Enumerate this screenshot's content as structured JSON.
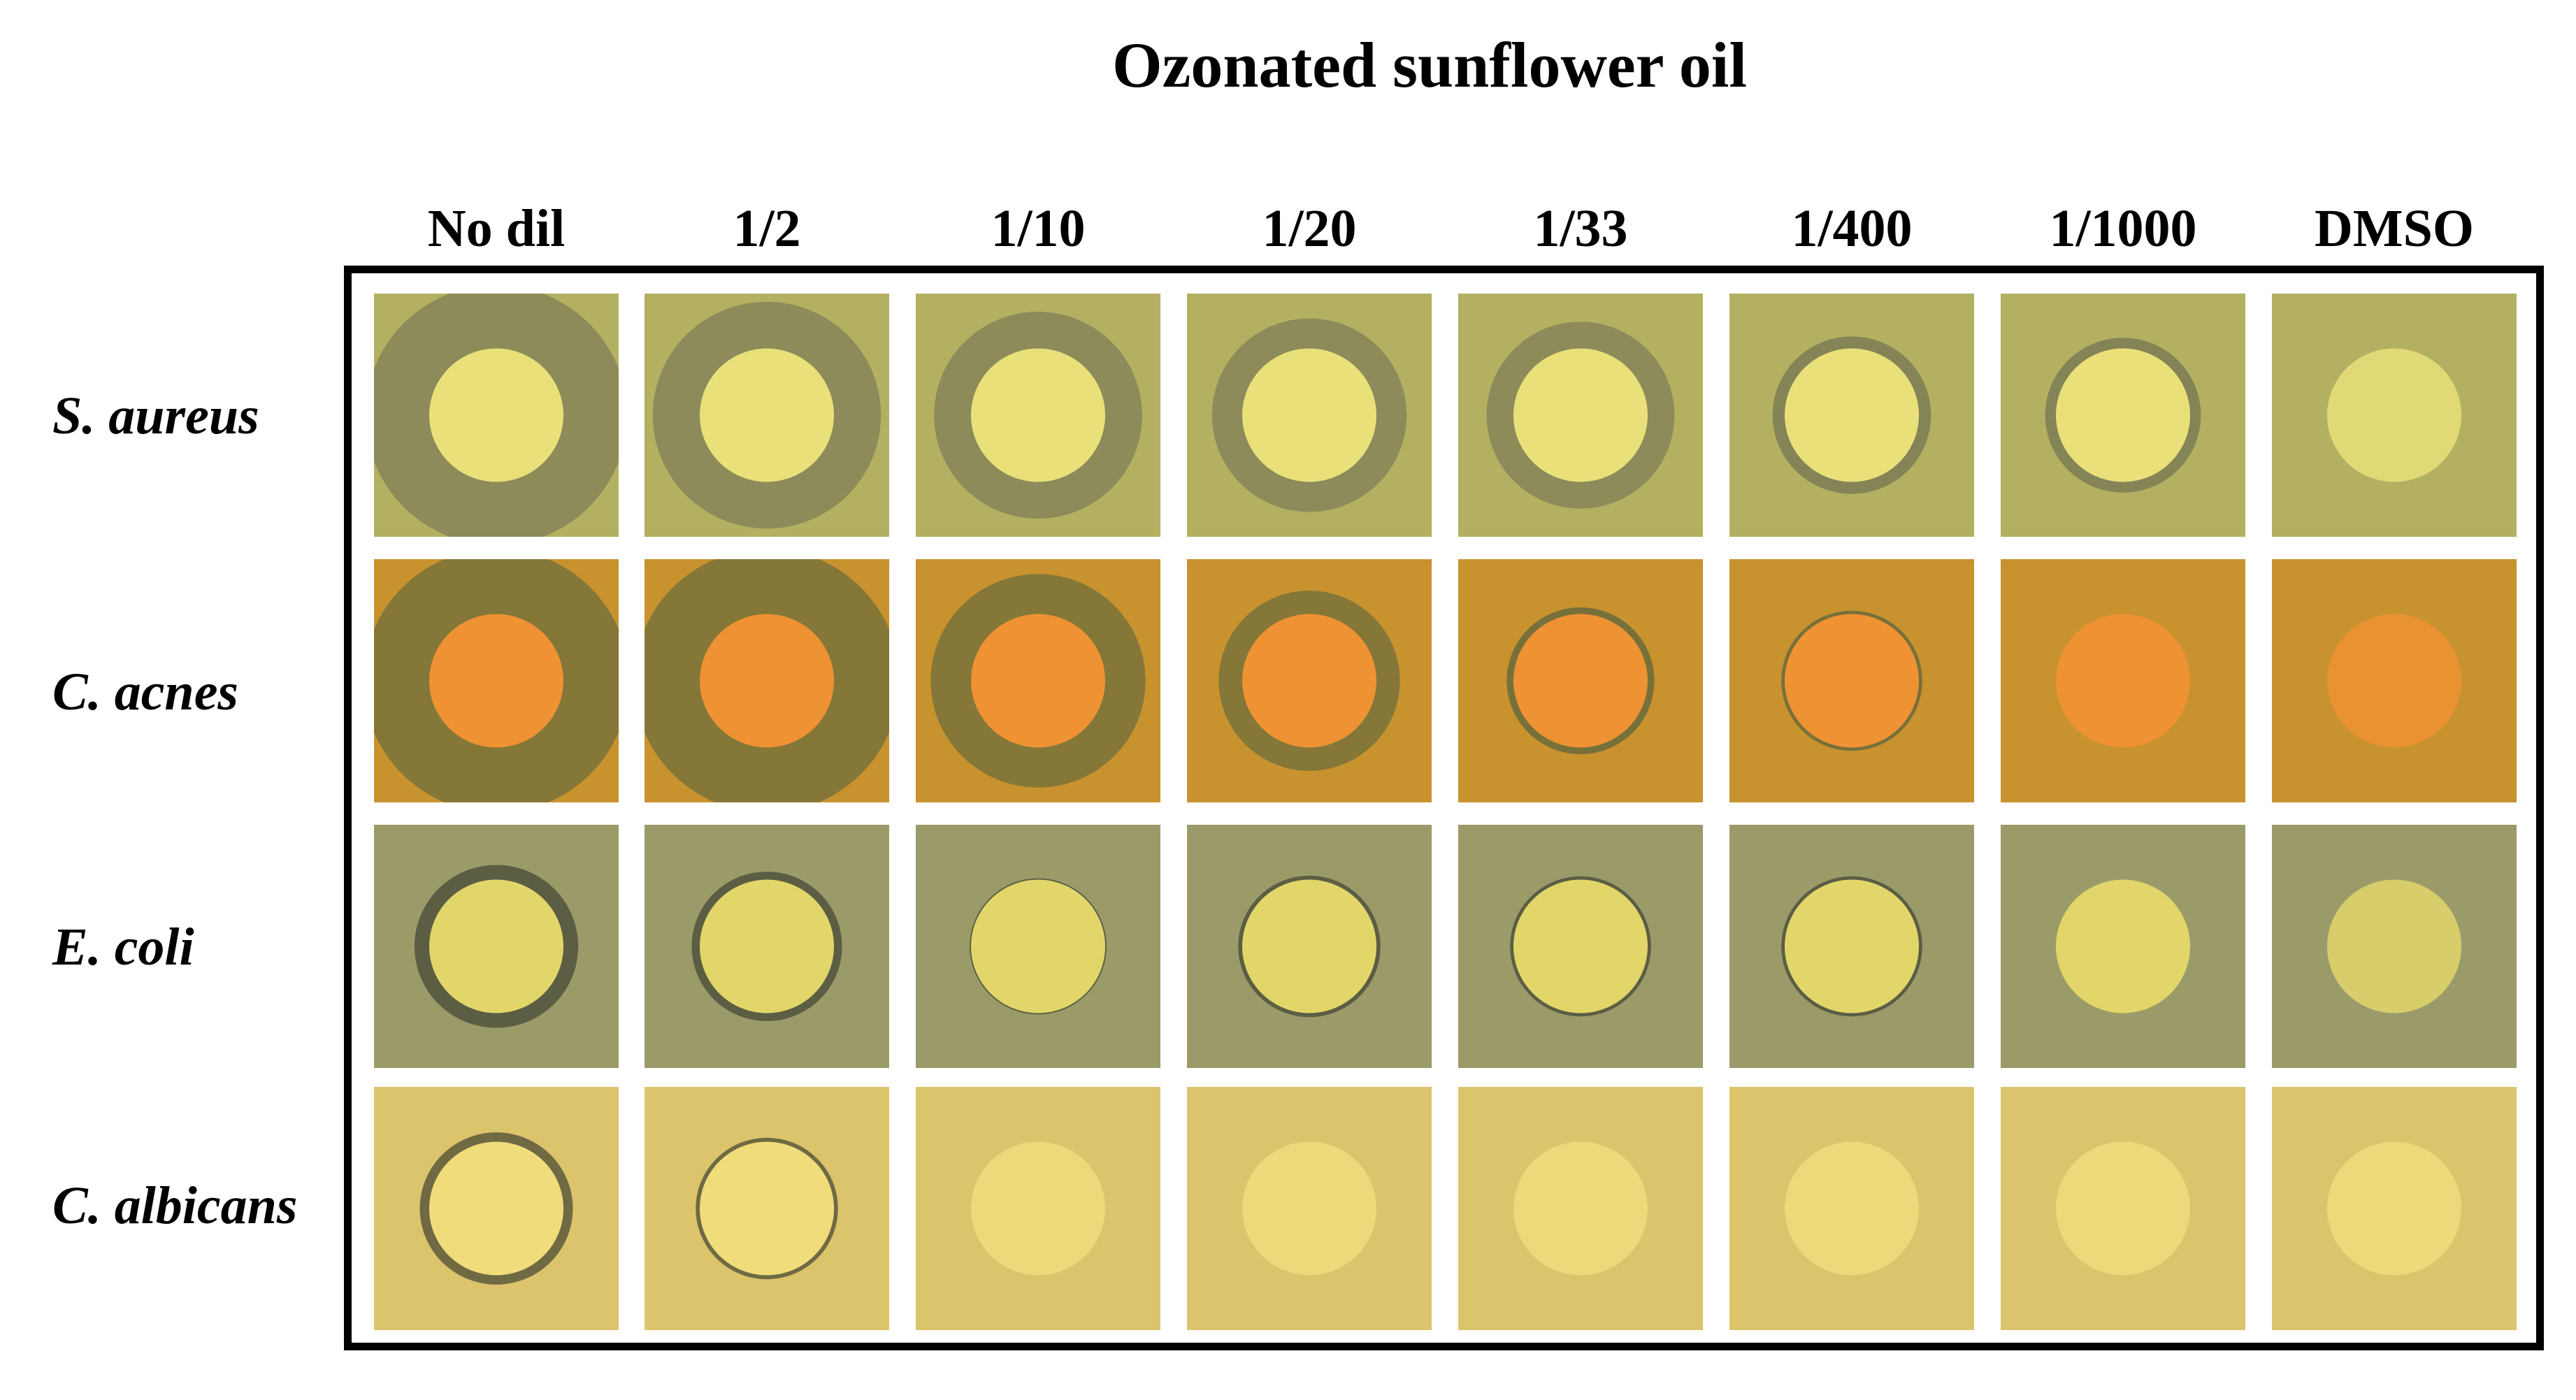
{
  "figure": {
    "title": "Ozonated sunflower oil",
    "columns": [
      "No dil",
      "1/2",
      "1/10",
      "1/20",
      "1/33",
      "1/400",
      "1/1000",
      "DMSO"
    ],
    "rows": [
      {
        "label": "S. aureus",
        "background": "#b3b061",
        "disk": "#e9e07a",
        "zone": "#7f7f57",
        "zones": [
          1.95,
          1.7,
          1.55,
          1.45,
          1.4,
          1.18,
          1.16,
          0
        ]
      },
      {
        "label": "C. acnes",
        "background": "#c8922f",
        "disk": "#ee9233",
        "zone": "#6e6d3b",
        "zones": [
          2.9,
          2.6,
          1.6,
          1.35,
          1.1,
          1.05,
          1.0,
          0
        ]
      },
      {
        "label": "E. coli",
        "background": "#9b9b6a",
        "disk": "#e2d66a",
        "zone": "#54583f",
        "zones": [
          1.22,
          1.12,
          1.02,
          1.06,
          1.05,
          1.05,
          1.0,
          0
        ]
      },
      {
        "label": "C. albicans",
        "background": "#dbc46c",
        "disk": "#f1dc7c",
        "zone": "#63613e",
        "zones": [
          1.14,
          1.06,
          0,
          0,
          0,
          0,
          0,
          0
        ]
      }
    ]
  }
}
